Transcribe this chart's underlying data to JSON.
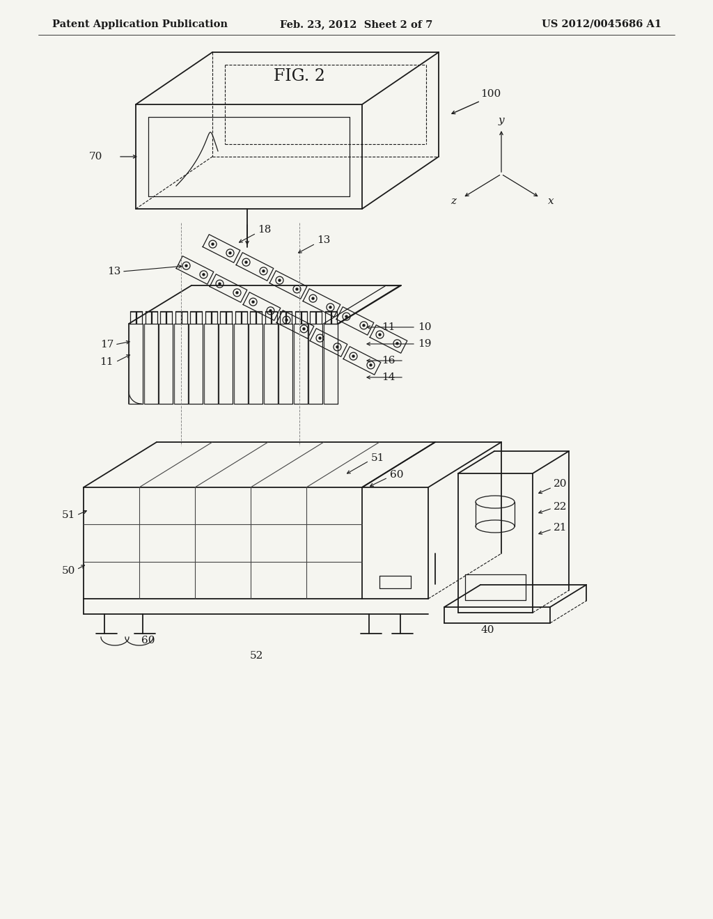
{
  "background_color": "#f5f5f0",
  "line_color": "#1a1a1a",
  "header_left": "Patent Application Publication",
  "header_mid": "Feb. 23, 2012  Sheet 2 of 7",
  "header_right": "US 2012/0045686 A1",
  "title": "FIG. 2",
  "header_fontsize": 10.5,
  "title_fontsize": 17,
  "label_fontsize": 11
}
